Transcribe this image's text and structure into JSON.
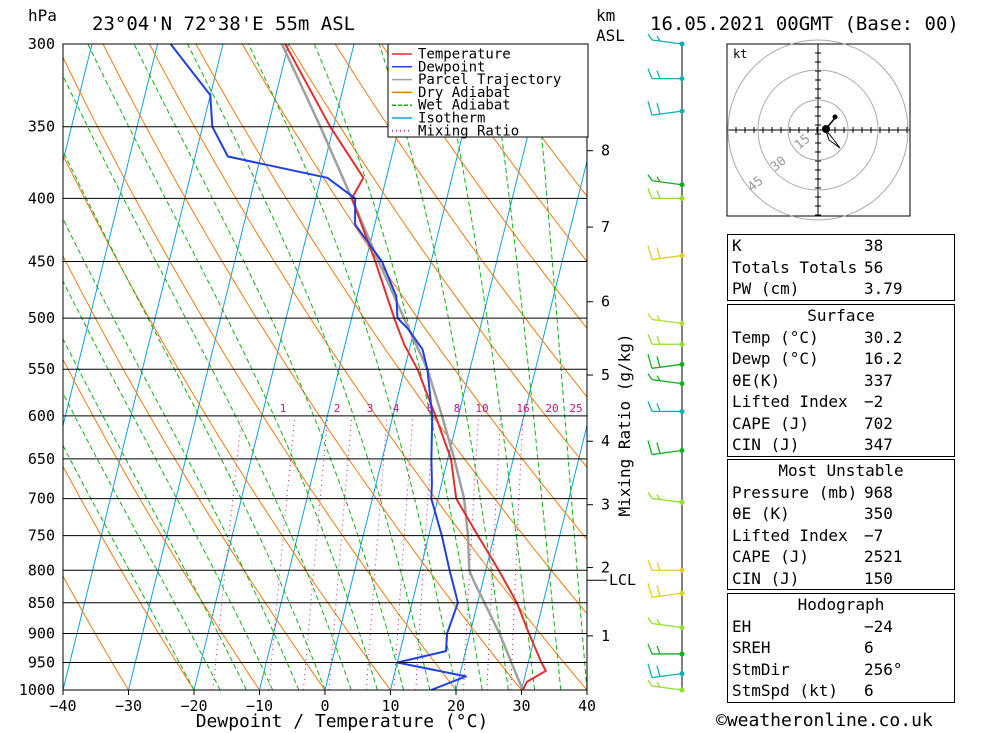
{
  "header": {
    "pressure_unit": "hPa",
    "location": "23°04'N 72°38'E 55m ASL",
    "km_label": "km",
    "asl_label": "ASL",
    "datetime": "16.05.2021 00GMT (Base: 00)"
  },
  "copyright": "©weatheronline.co.uk",
  "chart_data": {
    "type": "skew-t",
    "xlabel": "Dewpoint / Temperature (°C)",
    "mixing_ratio_axis_label": "Mixing Ratio (g/kg)",
    "x_ticks": [
      -40,
      -30,
      -20,
      -10,
      0,
      10,
      20,
      30,
      40
    ],
    "x_tick_labels": [
      "−40",
      "−30",
      "−20",
      "−10",
      "0",
      "10",
      "20",
      "30",
      "40"
    ],
    "pressure_levels": [
      300,
      350,
      400,
      450,
      500,
      550,
      600,
      650,
      700,
      750,
      800,
      850,
      900,
      950,
      1000
    ],
    "p_range": [
      300,
      1000
    ],
    "t_range": [
      -40,
      40
    ],
    "km_ticks": [
      {
        "label": "1",
        "p": 904
      },
      {
        "label": "2",
        "p": 796
      },
      {
        "label": "3",
        "p": 708
      },
      {
        "label": "4",
        "p": 629
      },
      {
        "label": "5",
        "p": 556
      },
      {
        "label": "6",
        "p": 485
      },
      {
        "label": "7",
        "p": 422
      },
      {
        "label": "8",
        "p": 366
      }
    ],
    "lcl": {
      "label": "LCL",
      "p": 815
    },
    "mixing_ratio_labels": [
      "1",
      "2",
      "3",
      "4",
      "6",
      "8",
      "10",
      "16",
      "20",
      "25"
    ],
    "mixing_ratio_values": [
      1,
      2,
      3,
      4,
      6,
      8,
      10,
      16,
      20,
      25
    ],
    "legend": [
      {
        "name": "Temperature",
        "color": "#e03030",
        "style": "solid"
      },
      {
        "name": "Dewpoint",
        "color": "#2040e0",
        "style": "solid"
      },
      {
        "name": "Parcel Trajectory",
        "color": "#a0a0a0",
        "style": "solid"
      },
      {
        "name": "Dry Adiabat",
        "color": "#f07a10",
        "style": "solid"
      },
      {
        "name": "Wet Adiabat",
        "color": "#10b010",
        "style": "dashed"
      },
      {
        "name": "Isotherm",
        "color": "#10a0e0",
        "style": "solid"
      },
      {
        "name": "Mixing Ratio",
        "color": "#d01080",
        "style": "dotted"
      }
    ],
    "series": [
      {
        "name": "Temperature",
        "points": [
          [
            1000,
            30.2
          ],
          [
            985,
            30.5
          ],
          [
            965,
            33
          ],
          [
            950,
            32
          ],
          [
            900,
            29
          ],
          [
            850,
            26
          ],
          [
            800,
            22
          ],
          [
            750,
            17.5
          ],
          [
            700,
            12.8
          ],
          [
            650,
            10.5
          ],
          [
            600,
            6.5
          ],
          [
            550,
            2.0
          ],
          [
            525,
            -1.0
          ],
          [
            500,
            -3.5
          ],
          [
            450,
            -8.5
          ],
          [
            400,
            -14.5
          ],
          [
            385,
            -13.5
          ],
          [
            350,
            -20.5
          ],
          [
            300,
            -30.5
          ]
        ]
      },
      {
        "name": "Dewpoint",
        "points": [
          [
            1000,
            16.2
          ],
          [
            975,
            21
          ],
          [
            950,
            10
          ],
          [
            930,
            17
          ],
          [
            900,
            16.5
          ],
          [
            850,
            17
          ],
          [
            800,
            14.5
          ],
          [
            750,
            12
          ],
          [
            700,
            9
          ],
          [
            680,
            8.5
          ],
          [
            650,
            7.5
          ],
          [
            600,
            6
          ],
          [
            550,
            3.5
          ],
          [
            530,
            2.0
          ],
          [
            510,
            -1.0
          ],
          [
            500,
            -3.0
          ],
          [
            480,
            -4.0
          ],
          [
            450,
            -7.5
          ],
          [
            420,
            -13.0
          ],
          [
            400,
            -14.0
          ],
          [
            385,
            -19.0
          ],
          [
            370,
            -35
          ],
          [
            350,
            -38.5
          ],
          [
            330,
            -40
          ],
          [
            300,
            -48
          ]
        ]
      },
      {
        "name": "Parcel Trajectory",
        "points": [
          [
            1000,
            30.2
          ],
          [
            900,
            24.5
          ],
          [
            815,
            18.5
          ],
          [
            800,
            17.5
          ],
          [
            750,
            16
          ],
          [
            700,
            14
          ],
          [
            650,
            11
          ],
          [
            600,
            7.5
          ],
          [
            550,
            3.5
          ],
          [
            500,
            -2.0
          ],
          [
            450,
            -8.0
          ],
          [
            400,
            -14.5
          ],
          [
            350,
            -22.0
          ],
          [
            300,
            -31.0
          ]
        ]
      }
    ],
    "hodograph": {
      "unit": "kt",
      "rings": [
        15,
        30,
        45
      ],
      "ring_labels": [
        "15",
        "30",
        "45"
      ]
    },
    "wind_barbs": [
      {
        "p": 300,
        "color": "#10b0b0"
      },
      {
        "p": 320,
        "color": "#10b0b0"
      },
      {
        "p": 340,
        "color": "#10b0b0"
      },
      {
        "p": 390,
        "color": "#10b020"
      },
      {
        "p": 400,
        "color": "#90e030"
      },
      {
        "p": 445,
        "color": "#e0d020"
      },
      {
        "p": 505,
        "color": "#b0e040"
      },
      {
        "p": 525,
        "color": "#90e030"
      },
      {
        "p": 545,
        "color": "#10b020"
      },
      {
        "p": 565,
        "color": "#10b020"
      },
      {
        "p": 595,
        "color": "#10b0b0"
      },
      {
        "p": 640,
        "color": "#10b020"
      },
      {
        "p": 705,
        "color": "#90e030"
      },
      {
        "p": 800,
        "color": "#e0d020"
      },
      {
        "p": 835,
        "color": "#e0d020"
      },
      {
        "p": 890,
        "color": "#90e030"
      },
      {
        "p": 935,
        "color": "#10b020"
      },
      {
        "p": 970,
        "color": "#10b0b0"
      },
      {
        "p": 1000,
        "color": "#90e030"
      }
    ]
  },
  "indices": {
    "general": [
      {
        "label": "K",
        "value": "38"
      },
      {
        "label": "Totals Totals",
        "value": "56"
      },
      {
        "label": "PW (cm)",
        "value": "3.79"
      }
    ],
    "surface": {
      "title": "Surface",
      "rows": [
        {
          "label": "Temp (°C)",
          "value": "30.2"
        },
        {
          "label": "Dewp (°C)",
          "value": "16.2"
        },
        {
          "label": "θE(K)",
          "value": "337"
        },
        {
          "label": "Lifted Index",
          "value": "−2"
        },
        {
          "label": "CAPE (J)",
          "value": "702"
        },
        {
          "label": "CIN (J)",
          "value": "347"
        }
      ]
    },
    "most_unstable": {
      "title": "Most Unstable",
      "rows": [
        {
          "label": "Pressure (mb)",
          "value": "968"
        },
        {
          "label": "θE (K)",
          "value": "350"
        },
        {
          "label": "Lifted Index",
          "value": "−7"
        },
        {
          "label": "CAPE (J)",
          "value": "2521"
        },
        {
          "label": "CIN (J)",
          "value": "150"
        }
      ]
    },
    "hodograph": {
      "title": "Hodograph",
      "rows": [
        {
          "label": "EH",
          "value": "−24"
        },
        {
          "label": "SREH",
          "value": "6"
        },
        {
          "label": "StmDir",
          "value": "256°"
        },
        {
          "label": "StmSpd (kt)",
          "value": "6"
        }
      ]
    }
  },
  "colors": {
    "temperature": "#e03030",
    "dewpoint": "#2040e0",
    "parcel": "#a0a0a0",
    "dry_adiabat": "#f07a10",
    "wet_adiabat": "#10b010",
    "isotherm": "#10a0e0",
    "mixing_ratio": "#d01080"
  }
}
